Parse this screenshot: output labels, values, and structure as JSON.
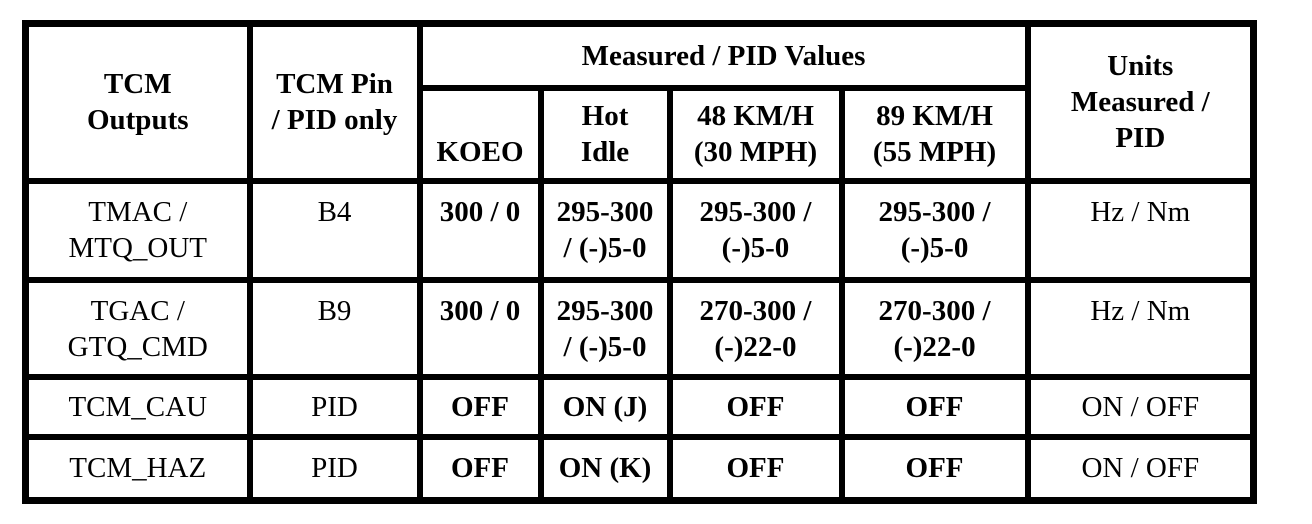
{
  "table": {
    "header": {
      "outputs": "TCM\nOutputs",
      "pin": "TCM Pin\n/ PID only",
      "group": "Measured / PID Values",
      "units": "Units\nMeasured /\nPID",
      "columns": [
        "KOEO",
        "Hot\nIdle",
        "48 KM/H\n(30 MPH)",
        "89 KM/H\n(55 MPH)"
      ]
    },
    "rows": [
      [
        "TMAC /\nMTQ_OUT",
        "B4",
        "300 / 0",
        "295-300\n/ (-)5-0",
        "295-300 /\n(-)5-0",
        "295-300 /\n(-)5-0",
        "Hz / Nm"
      ],
      [
        "TGAC /\nGTQ_CMD",
        "B9",
        "300 / 0",
        "295-300\n/ (-)5-0",
        "270-300 /\n(-)22-0",
        "270-300 /\n(-)22-0",
        "Hz / Nm"
      ],
      [
        "TCM_CAU",
        "PID",
        "OFF",
        "ON (J)",
        "OFF",
        "OFF",
        "ON / OFF"
      ],
      [
        "TCM_HAZ",
        "PID",
        "OFF",
        "ON (K)",
        "OFF",
        "OFF",
        "ON / OFF"
      ]
    ]
  }
}
